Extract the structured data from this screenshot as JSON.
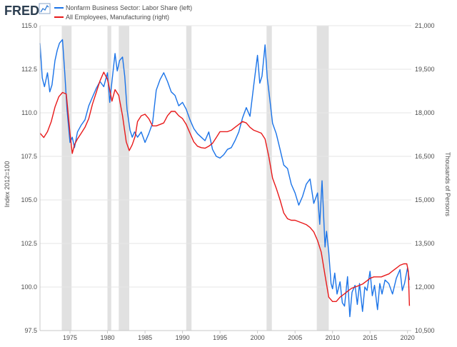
{
  "chart_data": {
    "type": "line",
    "brand": "FRED",
    "legend": [
      {
        "name": "Nonfarm Business Sector: Labor Share (left)",
        "color": "#1a73e8"
      },
      {
        "name": "All Employees, Manufacturing (right)",
        "color": "#e8191a"
      }
    ],
    "ylabel_left": "Index 2012=100",
    "ylabel_right": "Thousands of Persons",
    "xlim": [
      1971,
      2020.5
    ],
    "ylim_left": [
      97.5,
      115.0
    ],
    "ylim_right": [
      10500,
      21000
    ],
    "x_ticks": [
      1975,
      1980,
      1985,
      1990,
      1995,
      2000,
      2005,
      2010,
      2015,
      2020
    ],
    "x_tick_labels": [
      "1975",
      "1980",
      "1985",
      "1990",
      "1995",
      "2000",
      "2005",
      "2010",
      "2015",
      "2020"
    ],
    "y_left_ticks": [
      97.5,
      100.0,
      102.5,
      105.0,
      107.5,
      110.0,
      112.5,
      115.0
    ],
    "y_left_tick_labels": [
      "97.5",
      "100.0",
      "102.5",
      "105.0",
      "107.5",
      "110.0",
      "112.5",
      "115.0"
    ],
    "y_right_ticks": [
      10500,
      12000,
      13500,
      15000,
      16500,
      18000,
      19500,
      21000
    ],
    "y_right_tick_labels": [
      "10,500",
      "12,000",
      "13,500",
      "15,000",
      "16,500",
      "18,000",
      "19,500",
      "21,000"
    ],
    "recessions": [
      [
        1973.9,
        1975.2
      ],
      [
        1980.0,
        1980.5
      ],
      [
        1981.5,
        1982.9
      ],
      [
        1990.5,
        1991.2
      ],
      [
        2001.2,
        2001.9
      ],
      [
        2007.9,
        2009.5
      ]
    ],
    "recession_color": "#e1e1e1",
    "series": [
      {
        "name": "Nonfarm Business Sector: Labor Share (left)",
        "axis": "left",
        "color": "#1a73e8",
        "x": [
          1971.0,
          1971.3,
          1971.6,
          1972.0,
          1972.3,
          1972.6,
          1973.0,
          1973.3,
          1973.6,
          1974.0,
          1974.3,
          1974.6,
          1975.0,
          1975.3,
          1975.6,
          1976.0,
          1976.5,
          1977.0,
          1977.5,
          1978.0,
          1978.5,
          1979.0,
          1979.5,
          1980.0,
          1980.3,
          1980.6,
          1981.0,
          1981.3,
          1981.6,
          1982.0,
          1982.3,
          1982.6,
          1983.0,
          1983.3,
          1983.6,
          1984.0,
          1984.5,
          1985.0,
          1985.5,
          1986.0,
          1986.5,
          1987.0,
          1987.5,
          1988.0,
          1988.5,
          1989.0,
          1989.5,
          1990.0,
          1990.5,
          1991.0,
          1991.5,
          1992.0,
          1992.5,
          1993.0,
          1993.5,
          1994.0,
          1994.5,
          1995.0,
          1995.5,
          1996.0,
          1996.5,
          1997.0,
          1997.5,
          1998.0,
          1998.5,
          1999.0,
          1999.5,
          2000.0,
          2000.3,
          2000.6,
          2001.0,
          2001.3,
          2001.6,
          2002.0,
          2002.5,
          2003.0,
          2003.5,
          2004.0,
          2004.5,
          2005.0,
          2005.5,
          2006.0,
          2006.5,
          2007.0,
          2007.5,
          2008.0,
          2008.3,
          2008.6,
          2009.0,
          2009.2,
          2009.5,
          2009.8,
          2010.0,
          2010.3,
          2010.6,
          2011.0,
          2011.3,
          2011.6,
          2012.0,
          2012.3,
          2012.6,
          2013.0,
          2013.3,
          2013.6,
          2014.0,
          2014.3,
          2014.6,
          2015.0,
          2015.3,
          2015.6,
          2016.0,
          2016.3,
          2016.6,
          2017.0,
          2017.5,
          2018.0,
          2018.5,
          2019.0,
          2019.3,
          2019.6,
          2020.0,
          2020.25
        ],
        "y": [
          114.0,
          112.0,
          111.5,
          112.3,
          111.2,
          111.6,
          113.0,
          113.6,
          114.0,
          114.2,
          112.3,
          110.2,
          108.3,
          108.6,
          108.0,
          108.9,
          109.3,
          109.6,
          110.4,
          110.9,
          111.4,
          111.8,
          111.5,
          112.3,
          110.6,
          111.8,
          113.4,
          112.4,
          113.0,
          113.2,
          112.1,
          110.2,
          109.0,
          108.6,
          108.9,
          108.6,
          108.9,
          108.3,
          108.8,
          109.4,
          111.3,
          111.9,
          112.3,
          111.8,
          111.2,
          111.0,
          110.4,
          110.6,
          110.2,
          109.6,
          109.1,
          108.8,
          108.6,
          108.4,
          108.9,
          107.9,
          107.5,
          107.4,
          107.6,
          107.9,
          108.0,
          108.4,
          108.9,
          109.7,
          110.3,
          109.8,
          111.6,
          113.3,
          111.7,
          112.1,
          113.9,
          112.0,
          110.9,
          109.4,
          108.8,
          107.9,
          107.0,
          106.8,
          105.9,
          105.4,
          104.7,
          105.2,
          105.9,
          106.2,
          104.8,
          105.4,
          103.6,
          106.1,
          102.3,
          103.2,
          102.0,
          100.2,
          99.9,
          100.8,
          99.6,
          100.3,
          99.1,
          98.9,
          100.6,
          98.3,
          99.7,
          100.1,
          99.0,
          100.2,
          98.6,
          100.0,
          99.8,
          100.9,
          99.5,
          100.1,
          98.7,
          100.2,
          99.6,
          100.4,
          100.2,
          99.6,
          100.5,
          101.0,
          99.8,
          100.2,
          101.1,
          100.4
        ]
      },
      {
        "name": "All Employees, Manufacturing (right)",
        "axis": "right",
        "color": "#e8191a",
        "x": [
          1971.0,
          1971.5,
          1972.0,
          1972.5,
          1973.0,
          1973.5,
          1974.0,
          1974.5,
          1975.0,
          1975.3,
          1975.6,
          1976.0,
          1976.5,
          1977.0,
          1977.5,
          1978.0,
          1978.5,
          1979.0,
          1979.5,
          1980.0,
          1980.3,
          1980.6,
          1981.0,
          1981.5,
          1982.0,
          1982.5,
          1982.9,
          1983.3,
          1983.7,
          1984.0,
          1984.5,
          1985.0,
          1985.5,
          1986.0,
          1986.5,
          1987.0,
          1987.5,
          1988.0,
          1988.5,
          1989.0,
          1989.5,
          1990.0,
          1990.5,
          1991.0,
          1991.5,
          1992.0,
          1992.5,
          1993.0,
          1993.5,
          1994.0,
          1994.5,
          1995.0,
          1995.5,
          1996.0,
          1996.5,
          1997.0,
          1997.5,
          1998.0,
          1998.5,
          1999.0,
          1999.5,
          2000.0,
          2000.5,
          2001.0,
          2001.5,
          2002.0,
          2002.5,
          2003.0,
          2003.5,
          2004.0,
          2004.5,
          2005.0,
          2005.5,
          2006.0,
          2006.5,
          2007.0,
          2007.5,
          2008.0,
          2008.5,
          2009.0,
          2009.5,
          2010.0,
          2010.5,
          2011.0,
          2011.5,
          2012.0,
          2012.5,
          2013.0,
          2013.5,
          2014.0,
          2014.5,
          2015.0,
          2015.5,
          2016.0,
          2016.5,
          2017.0,
          2017.5,
          2018.0,
          2018.5,
          2019.0,
          2019.5,
          2019.9,
          2020.1,
          2020.25
        ],
        "y": [
          17300,
          17150,
          17350,
          17700,
          18200,
          18550,
          18700,
          18650,
          17300,
          16600,
          16900,
          17100,
          17300,
          17500,
          17800,
          18300,
          18700,
          19100,
          19400,
          19150,
          18800,
          18400,
          18800,
          18600,
          17900,
          17000,
          16700,
          16900,
          17200,
          17700,
          17900,
          17950,
          17800,
          17550,
          17550,
          17600,
          17650,
          17900,
          18050,
          18050,
          17900,
          17800,
          17600,
          17300,
          17000,
          16850,
          16800,
          16780,
          16850,
          16950,
          17150,
          17350,
          17350,
          17350,
          17400,
          17500,
          17600,
          17700,
          17650,
          17500,
          17400,
          17350,
          17300,
          17100,
          16500,
          15750,
          15400,
          15000,
          14550,
          14350,
          14300,
          14300,
          14250,
          14200,
          14150,
          14050,
          13900,
          13600,
          13200,
          12400,
          11650,
          11500,
          11500,
          11650,
          11750,
          11850,
          11950,
          12000,
          12050,
          12100,
          12200,
          12300,
          12350,
          12350,
          12350,
          12400,
          12450,
          12550,
          12650,
          12750,
          12800,
          12800,
          12550,
          11350
        ]
      }
    ]
  }
}
